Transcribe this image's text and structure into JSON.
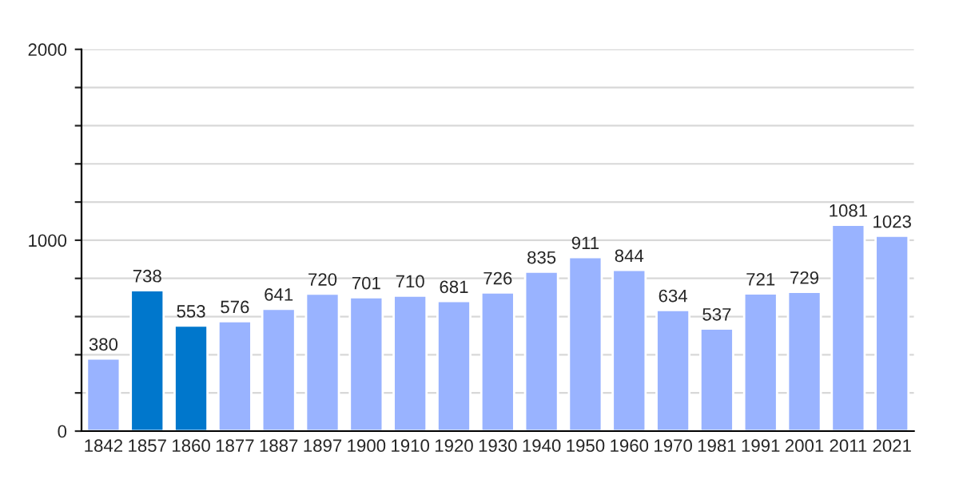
{
  "chart_data": {
    "type": "bar",
    "categories": [
      "1842",
      "1857",
      "1860",
      "1877",
      "1887",
      "1897",
      "1900",
      "1910",
      "1920",
      "1930",
      "1940",
      "1950",
      "1960",
      "1970",
      "1981",
      "1991",
      "2001",
      "2011",
      "2021"
    ],
    "values": [
      380,
      738,
      553,
      576,
      641,
      720,
      701,
      710,
      681,
      726,
      835,
      911,
      844,
      634,
      537,
      721,
      729,
      1081,
      1023
    ],
    "colors": [
      "#99b3ff",
      "#0077cc",
      "#0077cc",
      "#99b3ff",
      "#99b3ff",
      "#99b3ff",
      "#99b3ff",
      "#99b3ff",
      "#99b3ff",
      "#99b3ff",
      "#99b3ff",
      "#99b3ff",
      "#99b3ff",
      "#99b3ff",
      "#99b3ff",
      "#99b3ff",
      "#99b3ff",
      "#99b3ff",
      "#99b3ff"
    ],
    "ylim": [
      0,
      2000
    ],
    "yticks": [
      0,
      {
        "value": 200,
        "label": null
      },
      {
        "value": 400,
        "label": null
      },
      {
        "value": 600,
        "label": null
      },
      {
        "value": 800,
        "label": null
      },
      1000,
      {
        "value": 1200,
        "label": null
      },
      {
        "value": 1400,
        "label": null
      },
      {
        "value": 1600,
        "label": null
      },
      {
        "value": 1800,
        "label": null
      },
      2000
    ],
    "grid": "y",
    "data_labels": true
  }
}
